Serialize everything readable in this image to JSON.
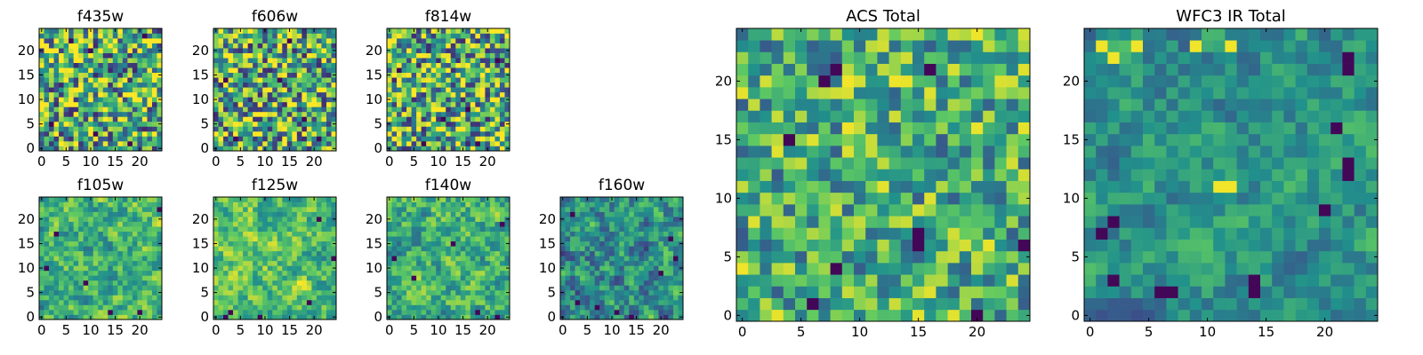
{
  "figure": {
    "colormap": "viridis",
    "cmap_colors": [
      "#440154",
      "#3b528b",
      "#21918c",
      "#5ec962",
      "#fde725"
    ]
  },
  "chart_data": [
    {
      "type": "heatmap",
      "title": "f435w",
      "grid_size": 25,
      "xlim": [
        -0.5,
        24.5
      ],
      "ylim": [
        -0.5,
        24.5
      ],
      "xticks": [
        0,
        5,
        10,
        15,
        20
      ],
      "yticks": [
        0,
        5,
        10,
        15,
        20
      ],
      "value_range": [
        0,
        1
      ],
      "texture": {
        "mean": 0.62,
        "spread": 0.5,
        "smooth": 0.0,
        "seed": 11,
        "lows": [
          [
            6,
            22
          ],
          [
            10,
            20
          ],
          [
            21,
            23
          ],
          [
            2,
            5
          ],
          [
            11,
            3
          ],
          [
            18,
            1
          ]
        ]
      }
    },
    {
      "type": "heatmap",
      "title": "f606w",
      "grid_size": 25,
      "xlim": [
        -0.5,
        24.5
      ],
      "ylim": [
        -0.5,
        24.5
      ],
      "xticks": [
        0,
        5,
        10,
        15,
        20
      ],
      "yticks": [
        0,
        5,
        10,
        15,
        20
      ],
      "value_range": [
        0,
        1
      ],
      "texture": {
        "mean": 0.62,
        "spread": 0.5,
        "smooth": 0.0,
        "seed": 23,
        "lows": [
          [
            2,
            14
          ],
          [
            13,
            14
          ],
          [
            4,
            2
          ],
          [
            18,
            6
          ],
          [
            21,
            2
          ],
          [
            15,
            22
          ]
        ]
      }
    },
    {
      "type": "heatmap",
      "title": "f814w",
      "grid_size": 25,
      "xlim": [
        -0.5,
        24.5
      ],
      "ylim": [
        -0.5,
        24.5
      ],
      "xticks": [
        0,
        5,
        10,
        15,
        20
      ],
      "yticks": [
        0,
        5,
        10,
        15,
        20
      ],
      "value_range": [
        0,
        1
      ],
      "texture": {
        "mean": 0.62,
        "spread": 0.5,
        "smooth": 0.0,
        "seed": 37,
        "lows": [
          [
            2,
            16
          ],
          [
            11,
            6
          ],
          [
            16,
            8
          ],
          [
            18,
            1
          ],
          [
            7,
            1
          ],
          [
            22,
            18
          ]
        ]
      }
    },
    {
      "type": "heatmap",
      "title": "f105w",
      "grid_size": 25,
      "xlim": [
        -0.5,
        24.5
      ],
      "ylim": [
        -0.5,
        24.5
      ],
      "xticks": [
        0,
        5,
        10,
        15,
        20
      ],
      "yticks": [
        0,
        5,
        10,
        15,
        20
      ],
      "value_range": [
        0,
        1
      ],
      "texture": {
        "mean": 0.64,
        "spread": 0.42,
        "smooth": 0.55,
        "seed": 41,
        "lows": [
          [
            3,
            17
          ],
          [
            9,
            7
          ],
          [
            14,
            1
          ],
          [
            20,
            1
          ],
          [
            24,
            22
          ],
          [
            1,
            10
          ]
        ]
      }
    },
    {
      "type": "heatmap",
      "title": "f125w",
      "grid_size": 25,
      "xlim": [
        -0.5,
        24.5
      ],
      "ylim": [
        -0.5,
        24.5
      ],
      "xticks": [
        0,
        5,
        10,
        15,
        20
      ],
      "yticks": [
        0,
        5,
        10,
        15,
        20
      ],
      "value_range": [
        0,
        1
      ],
      "texture": {
        "mean": 0.7,
        "spread": 0.4,
        "smooth": 0.55,
        "seed": 53,
        "lows": [
          [
            2,
            0
          ],
          [
            3,
            1
          ],
          [
            9,
            0
          ],
          [
            21,
            20
          ],
          [
            19,
            3
          ],
          [
            24,
            12
          ]
        ]
      }
    },
    {
      "type": "heatmap",
      "title": "f140w",
      "grid_size": 25,
      "xlim": [
        -0.5,
        24.5
      ],
      "ylim": [
        -0.5,
        24.5
      ],
      "xticks": [
        0,
        5,
        10,
        15,
        20
      ],
      "yticks": [
        0,
        5,
        10,
        15,
        20
      ],
      "value_range": [
        0,
        1
      ],
      "texture": {
        "mean": 0.64,
        "spread": 0.42,
        "smooth": 0.55,
        "seed": 67,
        "lows": [
          [
            1,
            12
          ],
          [
            5,
            8
          ],
          [
            13,
            15
          ],
          [
            18,
            1
          ],
          [
            22,
            0
          ],
          [
            23,
            19
          ]
        ]
      }
    },
    {
      "type": "heatmap",
      "title": "f160w",
      "grid_size": 25,
      "xlim": [
        -0.5,
        24.5
      ],
      "ylim": [
        -0.5,
        24.5
      ],
      "xticks": [
        0,
        5,
        10,
        15,
        20
      ],
      "yticks": [
        0,
        5,
        10,
        15,
        20
      ],
      "value_range": [
        0,
        1
      ],
      "texture": {
        "mean": 0.5,
        "spread": 0.46,
        "smooth": 0.55,
        "seed": 79,
        "lows": [
          [
            7,
            2
          ],
          [
            11,
            1
          ],
          [
            20,
            9
          ],
          [
            22,
            16
          ],
          [
            23,
            12
          ],
          [
            3,
            3
          ],
          [
            14,
            0
          ],
          [
            2,
            21
          ]
        ]
      }
    },
    {
      "type": "heatmap",
      "title": "ACS Total",
      "grid_size": 25,
      "xlim": [
        -0.5,
        24.5
      ],
      "ylim": [
        -0.5,
        24.5
      ],
      "xticks": [
        0,
        5,
        10,
        15,
        20
      ],
      "yticks": [
        0,
        5,
        10,
        15,
        20
      ],
      "value_range": [
        0,
        1
      ],
      "texture": {
        "mean": 0.63,
        "spread": 0.42,
        "smooth": 0.2,
        "seed": 89,
        "lows": [
          [
            8,
            21
          ],
          [
            7,
            20
          ],
          [
            16,
            21
          ],
          [
            4,
            15
          ],
          [
            15,
            7
          ],
          [
            15,
            6
          ],
          [
            24,
            6
          ],
          [
            8,
            4
          ],
          [
            6,
            1
          ],
          [
            20,
            0
          ]
        ]
      }
    },
    {
      "type": "heatmap",
      "title": "WFC3 IR Total",
      "grid_size": 25,
      "xlim": [
        -0.5,
        24.5
      ],
      "ylim": [
        -0.5,
        24.5
      ],
      "xticks": [
        0,
        5,
        10,
        15,
        20
      ],
      "yticks": [
        0,
        5,
        10,
        15,
        20
      ],
      "value_range": [
        0,
        1
      ],
      "texture": {
        "mean": 0.5,
        "spread": 0.32,
        "smooth": 0.6,
        "seed": 97,
        "lows": [
          [
            22,
            22
          ],
          [
            22,
            21
          ],
          [
            22,
            13
          ],
          [
            22,
            12
          ],
          [
            1,
            7
          ],
          [
            2,
            8
          ],
          [
            6,
            2
          ],
          [
            7,
            2
          ],
          [
            14,
            2
          ],
          [
            14,
            3
          ],
          [
            2,
            3
          ],
          [
            20,
            9
          ],
          [
            21,
            16
          ]
        ],
        "highs": [
          [
            1,
            23
          ],
          [
            2,
            22
          ],
          [
            4,
            23
          ],
          [
            9,
            23
          ],
          [
            12,
            23
          ],
          [
            11,
            11
          ],
          [
            12,
            11
          ]
        ]
      }
    }
  ]
}
